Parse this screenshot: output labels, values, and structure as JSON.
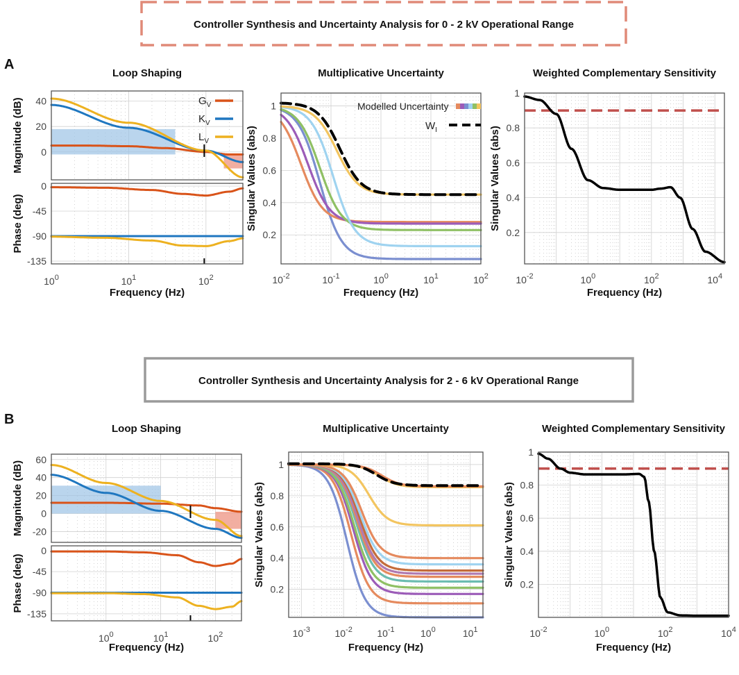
{
  "headers": [
    "Controller Synthesis and Uncertainty Analysis for 0 - 2 kV Operational Range",
    "Controller Synthesis and Uncertainty Analysis for  2 - 6 kV Operational Range"
  ],
  "panel_labels": [
    "A",
    "B"
  ],
  "colors": {
    "G": "#d95319",
    "K": "#1f77c0",
    "L": "#edb120",
    "wi": "#000000",
    "ref": "#c0504d",
    "light_blue": "#9cc3e6",
    "light_red": "#f0a090"
  },
  "chart_data": [
    {
      "id": "A-loop",
      "type": "line",
      "title": "Loop Shaping",
      "xlabel": "Frequency (Hz)",
      "xscale": "log",
      "xlim": [
        1,
        300
      ],
      "xticks": [
        {
          "exp": 0
        },
        {
          "exp": 1
        },
        {
          "exp": 2
        }
      ],
      "magnitude": {
        "ylabel": "Magnitude (dB)",
        "ylim": [
          -22,
          48
        ],
        "yticks": [
          40,
          20,
          0
        ],
        "series": [
          {
            "name": "G",
            "sub": "V",
            "color": "#d95319",
            "x": [
              1,
              3,
              10,
              30,
              100,
              200,
              300
            ],
            "y": [
              5,
              5,
              4.5,
              3,
              0,
              -2,
              -2
            ]
          },
          {
            "name": "K",
            "sub": "V",
            "color": "#1f77c0",
            "x": [
              1,
              10,
              100,
              300
            ],
            "y": [
              37,
              19,
              1,
              -8
            ]
          },
          {
            "name": "L",
            "sub": "V",
            "color": "#edb120",
            "x": [
              1,
              10,
              100,
              300
            ],
            "y": [
              42,
              23,
              1,
              -20
            ]
          }
        ]
      },
      "phase": {
        "ylabel": "Phase (deg)",
        "ylim": [
          -140,
          5
        ],
        "yticks": [
          0,
          -45,
          -90,
          -135
        ],
        "series": [
          {
            "name": "G",
            "color": "#d95319",
            "x": [
              1,
              5,
              20,
              50,
              100,
              200,
              300
            ],
            "y": [
              -2,
              -3,
              -7,
              -14,
              -17,
              -10,
              -4
            ]
          },
          {
            "name": "K",
            "color": "#1f77c0",
            "x": [
              1,
              300
            ],
            "y": [
              -90,
              -90
            ]
          },
          {
            "name": "L",
            "color": "#edb120",
            "x": [
              1,
              5,
              20,
              50,
              100,
              200,
              300
            ],
            "y": [
              -91,
              -93,
              -98,
              -107,
              -108,
              -99,
              -94
            ]
          }
        ]
      }
    },
    {
      "id": "A-mult",
      "type": "line",
      "title": "Multiplicative Uncertainty",
      "xlabel": "Frequency (Hz)",
      "ylabel": "Singular Values (abs)",
      "xscale": "log",
      "xlim": [
        0.01,
        100
      ],
      "ylim": [
        0.02,
        1.08
      ],
      "xticks": [
        {
          "exp": -2
        },
        {
          "exp": -1
        },
        {
          "exp": 0
        },
        {
          "exp": 1
        },
        {
          "exp": 2
        }
      ],
      "yticks": [
        1,
        0.8,
        0.6,
        0.4,
        0.2
      ],
      "legend": [
        "Modelled Uncertainty",
        "W"
      ],
      "legend_sub": "I",
      "series": [
        {
          "name": "u1",
          "color": "#7b8fd0",
          "hi": 1.0,
          "lo": 0.05,
          "fc": 0.06
        },
        {
          "name": "u2",
          "color": "#e58a5e",
          "hi": 1.0,
          "lo": 0.28,
          "fc": 0.025
        },
        {
          "name": "u3",
          "color": "#9c5cb8",
          "hi": 1.0,
          "lo": 0.27,
          "fc": 0.035
        },
        {
          "name": "u4",
          "color": "#8fc064",
          "hi": 1.0,
          "lo": 0.23,
          "fc": 0.06
        },
        {
          "name": "u5",
          "color": "#9fd3f0",
          "hi": 1.0,
          "lo": 0.13,
          "fc": 0.11
        },
        {
          "name": "u6",
          "color": "#f3c560",
          "hi": 1.0,
          "lo": 0.45,
          "fc": 0.13
        },
        {
          "name": "W_I",
          "color": "#000000",
          "dashed": true,
          "hi": 1.02,
          "lo": 0.45,
          "fc": 0.15
        }
      ]
    },
    {
      "id": "A-wcs",
      "type": "line",
      "title": "Weighted Complementary Sensitivity",
      "xlabel": "Frequency (Hz)",
      "ylabel": "Singular Values (abs)",
      "xscale": "log",
      "xlim": [
        0.01,
        20000
      ],
      "ylim": [
        0.02,
        1.0
      ],
      "xticks": [
        {
          "exp": -2
        },
        {
          "exp": 0
        },
        {
          "exp": 2
        },
        {
          "exp": 4
        }
      ],
      "yticks": [
        1,
        0.8,
        0.6,
        0.4,
        0.2
      ],
      "reference": {
        "value": 0.9,
        "color": "#c0504d"
      },
      "series": [
        {
          "name": "wT",
          "color": "#000000",
          "x": [
            0.01,
            0.03,
            0.1,
            0.3,
            1,
            3,
            10,
            30,
            100,
            200,
            400,
            800,
            2000,
            5000,
            20000
          ],
          "y": [
            0.98,
            0.96,
            0.88,
            0.68,
            0.5,
            0.455,
            0.445,
            0.445,
            0.445,
            0.452,
            0.46,
            0.4,
            0.22,
            0.09,
            0.03
          ]
        }
      ]
    },
    {
      "id": "B-loop",
      "type": "line",
      "title": "Loop Shaping",
      "xlabel": "Frequency (Hz)",
      "xscale": "log",
      "xlim": [
        0.1,
        300
      ],
      "xticks": [
        {
          "exp": 0
        },
        {
          "exp": 1
        },
        {
          "exp": 2
        }
      ],
      "magnitude": {
        "ylabel": "Magnitude (dB)",
        "ylim": [
          -32,
          66
        ],
        "yticks": [
          60,
          40,
          20,
          0,
          -20
        ],
        "series": [
          {
            "name": "G",
            "color": "#d95319",
            "x": [
              0.1,
              1,
              10,
              50,
              100,
              300
            ],
            "y": [
              12,
              12,
              11,
              9,
              6,
              2
            ]
          },
          {
            "name": "K",
            "color": "#1f77c0",
            "x": [
              0.1,
              1,
              10,
              100,
              300
            ],
            "y": [
              43,
              23,
              3,
              -17,
              -27
            ]
          },
          {
            "name": "L",
            "color": "#edb120",
            "x": [
              0.1,
              1,
              10,
              100,
              300
            ],
            "y": [
              54,
              34,
              14,
              -7,
              -25
            ]
          }
        ]
      },
      "phase": {
        "ylabel": "Phase (deg)",
        "ylim": [
          -150,
          10
        ],
        "yticks": [
          0,
          -45,
          -90,
          -135
        ],
        "series": [
          {
            "name": "G",
            "color": "#d95319",
            "x": [
              0.1,
              1,
              5,
              20,
              50,
              100,
              200,
              300
            ],
            "y": [
              -2,
              -2,
              -4,
              -10,
              -25,
              -33,
              -28,
              -18
            ]
          },
          {
            "name": "K",
            "color": "#1f77c0",
            "x": [
              0.1,
              300
            ],
            "y": [
              -90,
              -90
            ]
          },
          {
            "name": "L",
            "color": "#edb120",
            "x": [
              0.1,
              1,
              5,
              20,
              50,
              100,
              200,
              300
            ],
            "y": [
              -91,
              -91,
              -93,
              -100,
              -118,
              -125,
              -120,
              -108
            ]
          }
        ]
      }
    },
    {
      "id": "B-mult",
      "type": "line",
      "title": "Multiplicative Uncertainty",
      "xlabel": "Frequency (Hz)",
      "ylabel": "Singular Values (abs)",
      "xscale": "log",
      "xlim": [
        0.0005,
        20
      ],
      "ylim": [
        0.02,
        1.08
      ],
      "xticks": [
        {
          "exp": -3
        },
        {
          "exp": -2
        },
        {
          "exp": -1
        },
        {
          "exp": 0
        },
        {
          "exp": 1
        }
      ],
      "yticks": [
        1,
        0.8,
        0.6,
        0.4,
        0.2
      ],
      "series": [
        {
          "name": "u1",
          "color": "#7b8fd0",
          "hi": 1.0,
          "lo": 0.02,
          "fc": 0.012
        },
        {
          "name": "u2",
          "color": "#e58a5e",
          "hi": 1.0,
          "lo": 0.11,
          "fc": 0.015
        },
        {
          "name": "u3",
          "color": "#9c5cb8",
          "hi": 1.0,
          "lo": 0.17,
          "fc": 0.017
        },
        {
          "name": "u4",
          "color": "#8fc064",
          "hi": 1.0,
          "lo": 0.21,
          "fc": 0.018
        },
        {
          "name": "u5",
          "color": "#6bbcb0",
          "hi": 1.0,
          "lo": 0.25,
          "fc": 0.02
        },
        {
          "name": "u6",
          "color": "#e58a5e",
          "hi": 1.0,
          "lo": 0.28,
          "fc": 0.021
        },
        {
          "name": "u7",
          "color": "#b07ab0",
          "hi": 1.0,
          "lo": 0.3,
          "fc": 0.022
        },
        {
          "name": "u8",
          "color": "#c46c3a",
          "hi": 1.0,
          "lo": 0.32,
          "fc": 0.024
        },
        {
          "name": "u9",
          "color": "#9fd3f0",
          "hi": 1.0,
          "lo": 0.36,
          "fc": 0.025
        },
        {
          "name": "u10",
          "color": "#e58a5e",
          "hi": 1.0,
          "lo": 0.4,
          "fc": 0.027
        },
        {
          "name": "u11",
          "color": "#f3c560",
          "hi": 1.0,
          "lo": 0.61,
          "fc": 0.04
        },
        {
          "name": "u12",
          "color": "#f3c560",
          "hi": 1.0,
          "lo": 0.855,
          "fc": 0.07
        },
        {
          "name": "u13",
          "color": "#e58a5e",
          "hi": 1.0,
          "lo": 0.86,
          "fc": 0.08
        },
        {
          "name": "W_I",
          "color": "#000000",
          "dashed": true,
          "hi": 1.005,
          "lo": 0.865,
          "fc": 0.06
        }
      ]
    },
    {
      "id": "B-wcs",
      "type": "line",
      "title": "Weighted Complementary Sensitivity",
      "xlabel": "Frequency (Hz)",
      "ylabel": "Singular Values (abs)",
      "xscale": "log",
      "xlim": [
        0.01,
        10000
      ],
      "ylim": [
        0.0,
        1.0
      ],
      "xticks": [
        {
          "exp": -2
        },
        {
          "exp": 0
        },
        {
          "exp": 2
        },
        {
          "exp": 4
        }
      ],
      "yticks": [
        1,
        0.8,
        0.6,
        0.4,
        0.2
      ],
      "reference": {
        "value": 0.9,
        "color": "#c0504d"
      },
      "series": [
        {
          "name": "wT",
          "color": "#000000",
          "x": [
            0.01,
            0.02,
            0.05,
            0.1,
            0.3,
            1,
            5,
            15,
            22,
            30,
            45,
            70,
            120,
            300,
            1000,
            10000
          ],
          "y": [
            0.99,
            0.96,
            0.9,
            0.875,
            0.865,
            0.865,
            0.865,
            0.868,
            0.85,
            0.7,
            0.4,
            0.12,
            0.03,
            0.012,
            0.01,
            0.01
          ]
        }
      ]
    }
  ]
}
